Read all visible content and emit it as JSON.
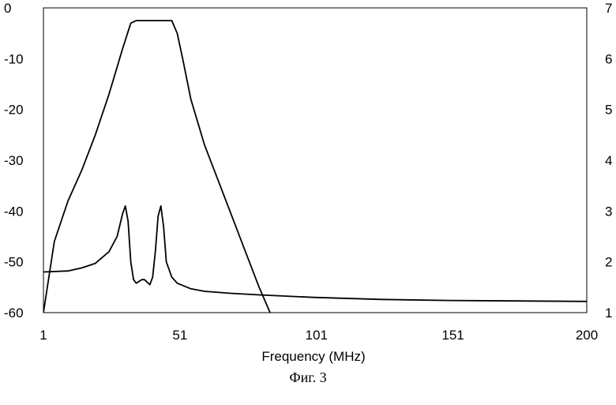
{
  "chart_data": {
    "type": "line",
    "xlabel": "Frequency (MHz)",
    "x_ticks": [
      1,
      51,
      101,
      151,
      200
    ],
    "xlim": [
      1,
      200
    ],
    "left_axis": {
      "ticks": [
        0,
        -10,
        -20,
        -30,
        -40,
        -50,
        -60
      ],
      "ylim": [
        -60,
        0
      ]
    },
    "right_axis": {
      "ticks": [
        7,
        6,
        5,
        4,
        3,
        2,
        1
      ],
      "ylim": [
        1,
        7
      ]
    },
    "grid": false,
    "legend": "none",
    "series": [
      {
        "axis": "left",
        "x": [
          1,
          5,
          10,
          15,
          20,
          25,
          30,
          33,
          35,
          37,
          40,
          45,
          48,
          50,
          52,
          55,
          60,
          65,
          70,
          75,
          80,
          84
        ],
        "y": [
          -60,
          -46,
          -38,
          -32,
          -25,
          -17,
          -8,
          -3,
          -2.5,
          -2.5,
          -2.5,
          -2.5,
          -2.5,
          -5,
          -10,
          -18,
          -27,
          -34,
          -41,
          -48,
          -55,
          -60
        ]
      },
      {
        "axis": "right",
        "x": [
          1,
          10,
          15,
          20,
          25,
          28,
          30,
          31,
          32,
          33,
          34,
          35,
          37,
          38,
          40,
          41,
          42,
          43,
          44,
          45,
          46,
          48,
          50,
          55,
          60,
          70,
          80,
          100,
          125,
          150,
          175,
          200
        ],
        "y": [
          1.8,
          1.82,
          1.88,
          1.97,
          2.2,
          2.5,
          2.95,
          3.1,
          2.8,
          2.0,
          1.65,
          1.58,
          1.65,
          1.65,
          1.55,
          1.7,
          2.2,
          2.9,
          3.1,
          2.7,
          2.0,
          1.7,
          1.58,
          1.47,
          1.42,
          1.38,
          1.35,
          1.3,
          1.26,
          1.24,
          1.23,
          1.22
        ]
      }
    ]
  },
  "caption": "Фиг. 3"
}
